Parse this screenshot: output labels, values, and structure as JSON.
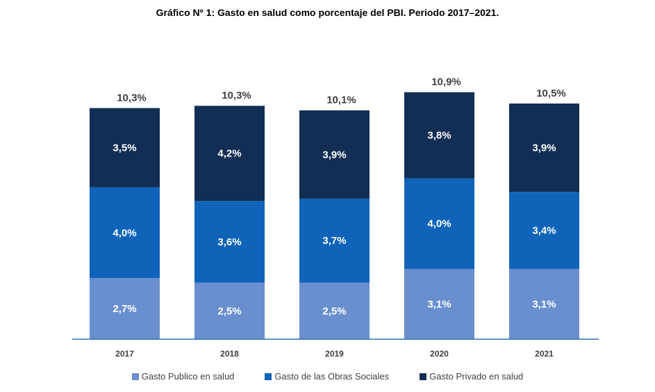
{
  "chart_data": {
    "type": "bar",
    "stacked": true,
    "title": "Gráfico Nº 1: Gasto en salud como porcentaje del PBI. Periodo 2017–2021.",
    "categories": [
      "2017",
      "2018",
      "2019",
      "2020",
      "2021"
    ],
    "series": [
      {
        "name": "Gasto Publico en salud",
        "color": "#6a8fcf",
        "values": [
          2.7,
          2.5,
          2.5,
          3.1,
          3.1
        ],
        "labels": [
          "2,7%",
          "2,5%",
          "2,5%",
          "3,1%",
          "3,1%"
        ]
      },
      {
        "name": "Gasto de las Obras Sociales",
        "color": "#0f64b9",
        "values": [
          4.0,
          3.6,
          3.7,
          4.0,
          3.4
        ],
        "labels": [
          "4,0%",
          "3,6%",
          "3,7%",
          "4,0%",
          "3,4%"
        ]
      },
      {
        "name": "Gasto Privado en salud",
        "color": "#122e54",
        "values": [
          3.5,
          4.2,
          3.9,
          3.8,
          3.9
        ],
        "labels": [
          "3,5%",
          "4,2%",
          "3,9%",
          "3,8%",
          "3,9%"
        ]
      }
    ],
    "totals": [
      10.3,
      10.3,
      10.1,
      10.9,
      10.5
    ],
    "total_labels": [
      "10,3%",
      "10,3%",
      "10,1%",
      "10,9%",
      "10,5%"
    ],
    "ylim": [
      0,
      11
    ],
    "grid": false,
    "legend_position": "bottom"
  }
}
